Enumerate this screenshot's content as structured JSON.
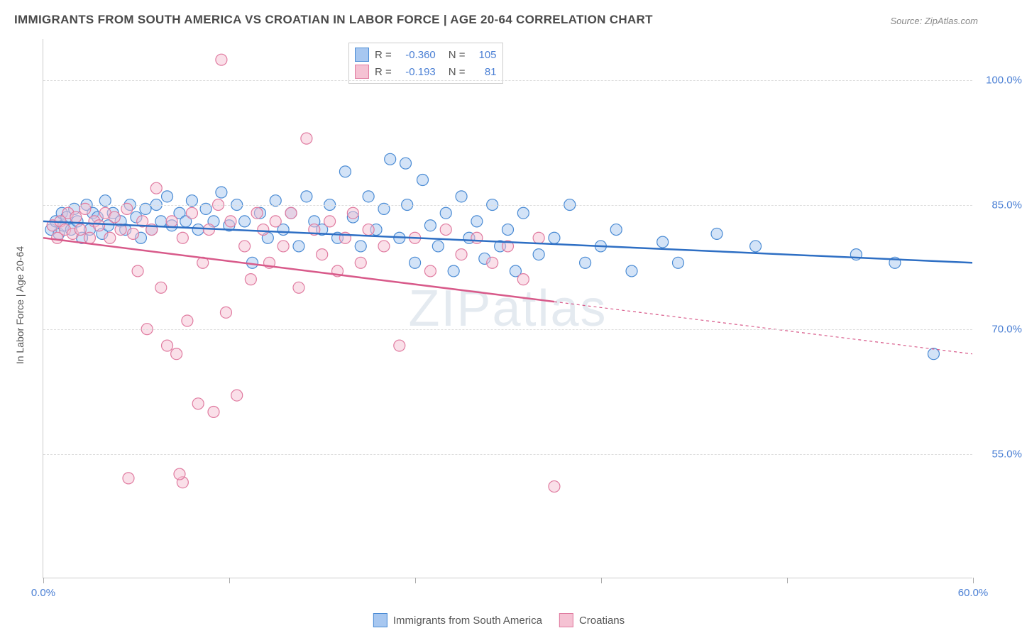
{
  "title": "IMMIGRANTS FROM SOUTH AMERICA VS CROATIAN IN LABOR FORCE | AGE 20-64 CORRELATION CHART",
  "source": "Source: ZipAtlas.com",
  "watermark": "ZIPatlas",
  "y_axis_label": "In Labor Force | Age 20-64",
  "chart": {
    "type": "scatter",
    "xlim": [
      0,
      60
    ],
    "ylim": [
      40,
      105
    ],
    "x_ticks": [
      0,
      12,
      24,
      36,
      48,
      60
    ],
    "x_tick_labels": {
      "0": "0.0%",
      "60": "60.0%"
    },
    "y_gridlines": [
      55,
      70,
      85,
      100
    ],
    "y_tick_labels": {
      "55": "55.0%",
      "70": "70.0%",
      "85": "85.0%",
      "100": "100.0%"
    },
    "background_color": "#ffffff",
    "grid_color": "#dddddd",
    "axis_color": "#cccccc",
    "tick_label_color": "#4a7fd4",
    "marker_radius": 8,
    "marker_opacity": 0.5,
    "marker_stroke_width": 1.2,
    "trend_line_width": 2.5,
    "series": [
      {
        "name": "Immigrants from South America",
        "fill_color": "#a7c7f0",
        "stroke_color": "#4a8bd4",
        "line_color": "#2e6fc4",
        "R": "-0.360",
        "N": "105",
        "trend": {
          "x1": 0,
          "y1": 83.0,
          "x2": 60,
          "y2": 78.0,
          "solid_until_x": 60
        },
        "points": [
          [
            0.5,
            82
          ],
          [
            0.8,
            83
          ],
          [
            1.0,
            81.5
          ],
          [
            1.2,
            84
          ],
          [
            1.3,
            82.5
          ],
          [
            1.5,
            83.5
          ],
          [
            1.8,
            82
          ],
          [
            2.0,
            84.5
          ],
          [
            2.2,
            83
          ],
          [
            2.5,
            81
          ],
          [
            2.8,
            85
          ],
          [
            3.0,
            82
          ],
          [
            3.2,
            84
          ],
          [
            3.5,
            83.5
          ],
          [
            3.8,
            81.5
          ],
          [
            4.0,
            85.5
          ],
          [
            4.2,
            82.5
          ],
          [
            4.5,
            84
          ],
          [
            5.0,
            83
          ],
          [
            5.3,
            82
          ],
          [
            5.6,
            85
          ],
          [
            6.0,
            83.5
          ],
          [
            6.3,
            81
          ],
          [
            6.6,
            84.5
          ],
          [
            7.0,
            82
          ],
          [
            7.3,
            85
          ],
          [
            7.6,
            83
          ],
          [
            8.0,
            86
          ],
          [
            8.3,
            82.5
          ],
          [
            8.8,
            84
          ],
          [
            9.2,
            83
          ],
          [
            9.6,
            85.5
          ],
          [
            10.0,
            82
          ],
          [
            10.5,
            84.5
          ],
          [
            11.0,
            83
          ],
          [
            11.5,
            86.5
          ],
          [
            12.0,
            82.5
          ],
          [
            12.5,
            85
          ],
          [
            13.0,
            83
          ],
          [
            13.5,
            78
          ],
          [
            14.0,
            84
          ],
          [
            14.5,
            81
          ],
          [
            15.0,
            85.5
          ],
          [
            15.5,
            82
          ],
          [
            16.0,
            84
          ],
          [
            16.5,
            80
          ],
          [
            17.0,
            86
          ],
          [
            17.5,
            83
          ],
          [
            18.0,
            82
          ],
          [
            18.5,
            85
          ],
          [
            19.0,
            81
          ],
          [
            19.5,
            89
          ],
          [
            20.0,
            83.5
          ],
          [
            20.5,
            80
          ],
          [
            21.0,
            86
          ],
          [
            21.5,
            82
          ],
          [
            22.0,
            84.5
          ],
          [
            22.4,
            90.5
          ],
          [
            23.0,
            81
          ],
          [
            23.4,
            90
          ],
          [
            23.5,
            85
          ],
          [
            24.0,
            78
          ],
          [
            24.5,
            88
          ],
          [
            25.0,
            82.5
          ],
          [
            25.5,
            80
          ],
          [
            26.0,
            84
          ],
          [
            26.5,
            77
          ],
          [
            27.0,
            86
          ],
          [
            27.5,
            81
          ],
          [
            28.0,
            83
          ],
          [
            28.5,
            78.5
          ],
          [
            29.0,
            85
          ],
          [
            29.5,
            80
          ],
          [
            30.0,
            82
          ],
          [
            30.5,
            77
          ],
          [
            31.0,
            84
          ],
          [
            32.0,
            79
          ],
          [
            33.0,
            81
          ],
          [
            34.0,
            85
          ],
          [
            35.0,
            78
          ],
          [
            36.0,
            80
          ],
          [
            37.0,
            82
          ],
          [
            38.0,
            77
          ],
          [
            40.0,
            80.5
          ],
          [
            41.0,
            78
          ],
          [
            43.5,
            81.5
          ],
          [
            46.0,
            80
          ],
          [
            52.5,
            79
          ],
          [
            55.0,
            78
          ],
          [
            57.5,
            67
          ]
        ]
      },
      {
        "name": "Croatians",
        "fill_color": "#f5c2d3",
        "stroke_color": "#e07ba0",
        "line_color": "#d85a8a",
        "R": "-0.193",
        "N": "81",
        "trend": {
          "x1": 0,
          "y1": 81.0,
          "x2": 60,
          "y2": 67.0,
          "solid_until_x": 33
        },
        "points": [
          [
            0.6,
            82.5
          ],
          [
            0.9,
            81
          ],
          [
            1.1,
            83
          ],
          [
            1.4,
            82
          ],
          [
            1.6,
            84
          ],
          [
            1.9,
            81.5
          ],
          [
            2.1,
            83.5
          ],
          [
            2.4,
            82
          ],
          [
            2.7,
            84.5
          ],
          [
            3.0,
            81
          ],
          [
            3.3,
            83
          ],
          [
            3.6,
            82.5
          ],
          [
            4.0,
            84
          ],
          [
            4.3,
            81
          ],
          [
            4.6,
            83.5
          ],
          [
            5.0,
            82
          ],
          [
            5.4,
            84.5
          ],
          [
            5.8,
            81.5
          ],
          [
            6.1,
            77
          ],
          [
            6.4,
            83
          ],
          [
            6.7,
            70
          ],
          [
            7.0,
            82
          ],
          [
            7.3,
            87
          ],
          [
            7.6,
            75
          ],
          [
            8.0,
            68
          ],
          [
            8.3,
            83
          ],
          [
            8.6,
            67
          ],
          [
            9.0,
            81
          ],
          [
            9.3,
            71
          ],
          [
            9.6,
            84
          ],
          [
            10.0,
            61
          ],
          [
            10.3,
            78
          ],
          [
            10.7,
            82
          ],
          [
            11.0,
            60
          ],
          [
            11.3,
            85
          ],
          [
            11.5,
            102.5
          ],
          [
            11.8,
            72
          ],
          [
            12.1,
            83
          ],
          [
            12.5,
            62
          ],
          [
            13.0,
            80
          ],
          [
            13.4,
            76
          ],
          [
            13.8,
            84
          ],
          [
            14.2,
            82
          ],
          [
            14.6,
            78
          ],
          [
            15.0,
            83
          ],
          [
            15.5,
            80
          ],
          [
            16.0,
            84
          ],
          [
            16.5,
            75
          ],
          [
            17.0,
            93
          ],
          [
            17.5,
            82
          ],
          [
            18.0,
            79
          ],
          [
            18.5,
            83
          ],
          [
            19.0,
            77
          ],
          [
            19.5,
            81
          ],
          [
            20.0,
            84
          ],
          [
            20.5,
            78
          ],
          [
            21.0,
            82
          ],
          [
            22.0,
            80
          ],
          [
            23.0,
            68
          ],
          [
            24.0,
            81
          ],
          [
            25.0,
            77
          ],
          [
            26.0,
            82
          ],
          [
            27.0,
            79
          ],
          [
            28.0,
            81
          ],
          [
            29.0,
            78
          ],
          [
            30.0,
            80
          ],
          [
            31.0,
            76
          ],
          [
            32.0,
            81
          ],
          [
            33.0,
            51
          ],
          [
            5.5,
            52
          ],
          [
            9.0,
            51.5
          ],
          [
            8.8,
            52.5
          ]
        ]
      }
    ]
  },
  "stats_box": {
    "rows": [
      {
        "swatch_fill": "#a7c7f0",
        "swatch_stroke": "#4a8bd4",
        "R_label": "R =",
        "R_value": "-0.360",
        "N_label": "N =",
        "N_value": "105"
      },
      {
        "swatch_fill": "#f5c2d3",
        "swatch_stroke": "#e07ba0",
        "R_label": "R =",
        "R_value": "-0.193",
        "N_label": "N =",
        "N_value": " 81"
      }
    ]
  },
  "bottom_legend": {
    "items": [
      {
        "swatch_fill": "#a7c7f0",
        "swatch_stroke": "#4a8bd4",
        "label": "Immigrants from South America"
      },
      {
        "swatch_fill": "#f5c2d3",
        "swatch_stroke": "#e07ba0",
        "label": "Croatians"
      }
    ]
  }
}
